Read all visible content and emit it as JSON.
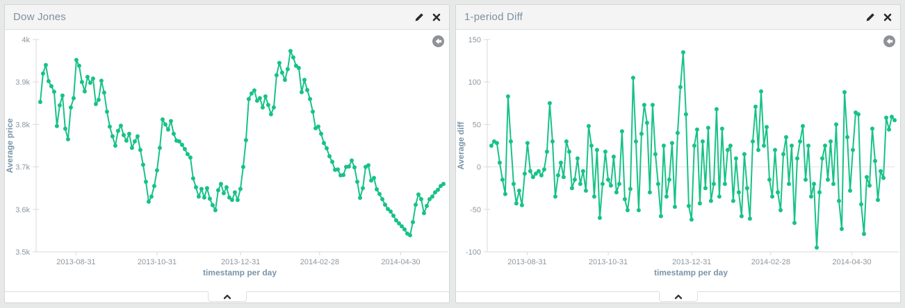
{
  "page": {
    "background": "#e6e9e8"
  },
  "colors": {
    "series_green": "#17c286",
    "panel_header_bg": "#f4f4f4",
    "title_text": "#7c90a0",
    "axis_line": "#d9d9d9",
    "zero_line": "#e2e2e2",
    "tick_text": "#8e969d",
    "axis_title_text": "#7a94aa",
    "icon_dark": "#2b2b2b",
    "back_circle_gray": "#8e9297"
  },
  "panels": [
    {
      "title": "Dow Jones",
      "icons": {
        "edit": "pencil-icon",
        "remove": "close-icon",
        "back": "arrow-circle-left-icon",
        "collapse": "chevron-up-icon"
      }
    },
    {
      "title": "1-period Diff",
      "icons": {
        "edit": "pencil-icon",
        "remove": "close-icon",
        "back": "arrow-circle-left-icon",
        "collapse": "chevron-up-icon"
      }
    }
  ],
  "chart_data": [
    {
      "type": "line",
      "title": "Dow Jones",
      "xlabel": "timestamp per day",
      "ylabel": "Average price",
      "ylim": [
        3500,
        4000
      ],
      "grid": false,
      "zero_line": false,
      "legend": "none",
      "y_ticks": [
        {
          "v": 3500,
          "label": "3.5k"
        },
        {
          "v": 3600,
          "label": "3.6k"
        },
        {
          "v": 3700,
          "label": "3.7k"
        },
        {
          "v": 3800,
          "label": "3.8k"
        },
        {
          "v": 3900,
          "label": "3.9k"
        },
        {
          "v": 4000,
          "label": "4k"
        }
      ],
      "x_ticks": [
        {
          "f": 0.098,
          "label": "2013-08-31"
        },
        {
          "f": 0.297,
          "label": "2013-10-31"
        },
        {
          "f": 0.502,
          "label": "2013-12-31"
        },
        {
          "f": 0.696,
          "label": "2014-02-28"
        },
        {
          "f": 0.895,
          "label": "2014-04-30"
        }
      ],
      "x_data_range": [
        0.01,
        1.0
      ],
      "values": [
        3853,
        3920,
        3940,
        3902,
        3890,
        3877,
        3796,
        3845,
        3868,
        3790,
        3765,
        3840,
        3862,
        3952,
        3938,
        3900,
        3878,
        3912,
        3898,
        3908,
        3848,
        3858,
        3903,
        3875,
        3830,
        3795,
        3772,
        3750,
        3785,
        3797,
        3775,
        3762,
        3778,
        3745,
        3760,
        3772,
        3740,
        3705,
        3665,
        3618,
        3630,
        3655,
        3692,
        3745,
        3812,
        3800,
        3788,
        3808,
        3778,
        3762,
        3760,
        3752,
        3742,
        3730,
        3722,
        3673,
        3652,
        3630,
        3648,
        3628,
        3650,
        3625,
        3610,
        3598,
        3645,
        3660,
        3638,
        3652,
        3628,
        3622,
        3640,
        3622,
        3648,
        3700,
        3763,
        3860,
        3873,
        3880,
        3856,
        3862,
        3840,
        3866,
        3846,
        3824,
        3840,
        3916,
        3945,
        3922,
        3905,
        3930,
        3973,
        3958,
        3938,
        3933,
        3876,
        3905,
        3881,
        3860,
        3830,
        3791,
        3795,
        3778,
        3756,
        3744,
        3725,
        3712,
        3693,
        3694,
        3680,
        3681,
        3700,
        3701,
        3715,
        3699,
        3665,
        3627,
        3650,
        3700,
        3704,
        3668,
        3674,
        3647,
        3636,
        3624,
        3611,
        3601,
        3595,
        3585,
        3574,
        3567,
        3560,
        3553,
        3543,
        3539,
        3570,
        3611,
        3635,
        3624,
        3591,
        3608,
        3624,
        3630,
        3640,
        3646,
        3655,
        3660
      ]
    },
    {
      "type": "line",
      "title": "1-period Diff",
      "xlabel": "timestamp per day",
      "ylabel": "Average diff",
      "ylim": [
        -100,
        150
      ],
      "grid": false,
      "zero_line": true,
      "legend": "none",
      "y_ticks": [
        {
          "v": -100,
          "label": "-100"
        },
        {
          "v": -50,
          "label": "-50"
        },
        {
          "v": 0,
          "label": "0"
        },
        {
          "v": 50,
          "label": "50"
        },
        {
          "v": 100,
          "label": "100"
        },
        {
          "v": 150,
          "label": "150"
        }
      ],
      "x_ticks": [
        {
          "f": 0.098,
          "label": "2013-08-31"
        },
        {
          "f": 0.297,
          "label": "2013-10-31"
        },
        {
          "f": 0.502,
          "label": "2013-12-31"
        },
        {
          "f": 0.696,
          "label": "2014-02-28"
        },
        {
          "f": 0.895,
          "label": "2014-04-30"
        }
      ],
      "x_data_range": [
        0.01,
        1.0
      ],
      "values": [
        25,
        30,
        28,
        5,
        -15,
        -32,
        83,
        30,
        -20,
        -43,
        -28,
        -45,
        -8,
        28,
        -5,
        -12,
        -8,
        -5,
        -10,
        -3,
        18,
        75,
        30,
        -35,
        -10,
        5,
        -12,
        30,
        18,
        -25,
        -15,
        10,
        -20,
        -5,
        -28,
        48,
        25,
        -35,
        20,
        -60,
        -20,
        18,
        -15,
        -22,
        12,
        -30,
        -20,
        42,
        -38,
        -51,
        -26,
        105,
        30,
        -51,
        39,
        73,
        52,
        -30,
        73,
        15,
        -20,
        -58,
        25,
        -35,
        -15,
        28,
        -47,
        40,
        94,
        135,
        62,
        -46,
        -62,
        25,
        44,
        -43,
        30,
        -25,
        46,
        -40,
        -20,
        68,
        -35,
        45,
        -20,
        20,
        25,
        -40,
        10,
        -30,
        -58,
        15,
        -25,
        -61,
        30,
        71,
        20,
        89,
        25,
        47,
        -15,
        -35,
        20,
        -30,
        -51,
        15,
        35,
        -20,
        25,
        -66,
        10,
        30,
        48,
        -15,
        25,
        -35,
        -20,
        -95,
        -30,
        10,
        25,
        -15,
        30,
        -20,
        50,
        -40,
        -73,
        88,
        35,
        -28,
        20,
        64,
        62,
        -44,
        -79,
        -12,
        -22,
        45,
        7,
        -39,
        -5,
        -13,
        58,
        44,
        59,
        55
      ]
    }
  ]
}
